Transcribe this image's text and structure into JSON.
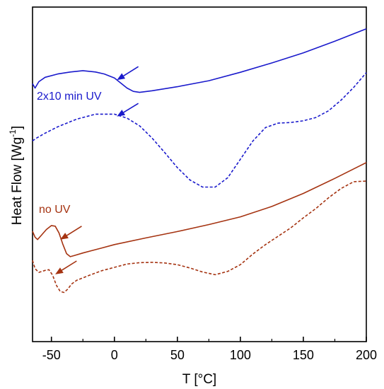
{
  "chart_data": {
    "type": "line",
    "title": "",
    "xlabel": "T [°C]",
    "ylabel": "Heat Flow [Wg",
    "ylabel_sup": "-1",
    "ylabel_close": "]",
    "xlim": [
      -65,
      200
    ],
    "ylim": [
      0,
      1
    ],
    "xticks": [
      -50,
      0,
      50,
      100,
      150,
      200
    ],
    "xtick_labels": [
      "-50",
      "0",
      "50",
      "100",
      "150",
      "200"
    ],
    "y_tick_labels_shown": false,
    "grid": false,
    "legend": "none",
    "annotations": [
      {
        "text": "2x10 min UV",
        "color": "#1a1acc"
      },
      {
        "text": "no UV",
        "color": "#a53311"
      }
    ],
    "arrows": [
      {
        "color": "#1a1acc",
        "tip": [
          2,
          0.782
        ],
        "tail": [
          19,
          0.822
        ]
      },
      {
        "color": "#1a1acc",
        "tip": [
          2,
          0.673
        ],
        "tail": [
          19,
          0.712
        ]
      },
      {
        "color": "#a53311",
        "tip": [
          -43,
          0.305
        ],
        "tail": [
          -26,
          0.345
        ]
      },
      {
        "color": "#a53311",
        "tip": [
          -47,
          0.201
        ],
        "tail": [
          -30,
          0.241
        ]
      }
    ],
    "series": [
      {
        "style": "solid",
        "color": "#1a1acc",
        "x": [
          -65,
          -63,
          -60,
          -55,
          -45,
          -35,
          -25,
          -15,
          -8,
          0,
          5,
          10,
          15,
          20,
          30,
          50,
          75,
          100,
          125,
          150,
          175,
          200
        ],
        "y": [
          0.771,
          0.758,
          0.777,
          0.79,
          0.8,
          0.806,
          0.81,
          0.806,
          0.8,
          0.788,
          0.773,
          0.758,
          0.748,
          0.745,
          0.75,
          0.762,
          0.78,
          0.805,
          0.833,
          0.863,
          0.898,
          0.935
        ]
      },
      {
        "style": "dashed",
        "color": "#1a1acc",
        "x": [
          -65,
          -62,
          -55,
          -45,
          -30,
          -15,
          0,
          10,
          20,
          30,
          40,
          50,
          60,
          70,
          80,
          90,
          100,
          110,
          120,
          130,
          140,
          150,
          160,
          170,
          180,
          190,
          200
        ],
        "y": [
          0.6,
          0.608,
          0.623,
          0.642,
          0.665,
          0.68,
          0.68,
          0.668,
          0.645,
          0.608,
          0.565,
          0.52,
          0.483,
          0.462,
          0.462,
          0.49,
          0.545,
          0.6,
          0.64,
          0.653,
          0.655,
          0.66,
          0.67,
          0.69,
          0.722,
          0.76,
          0.804
        ]
      },
      {
        "style": "solid",
        "color": "#a53311",
        "x": [
          -65,
          -63,
          -61,
          -58,
          -54,
          -50,
          -47,
          -44,
          -41,
          -38,
          -35,
          -32,
          -25,
          -10,
          0,
          25,
          50,
          75,
          100,
          125,
          150,
          175,
          200
        ],
        "y": [
          0.33,
          0.312,
          0.305,
          0.318,
          0.335,
          0.347,
          0.345,
          0.325,
          0.292,
          0.263,
          0.254,
          0.257,
          0.265,
          0.28,
          0.29,
          0.31,
          0.329,
          0.35,
          0.373,
          0.404,
          0.443,
          0.488,
          0.535
        ]
      },
      {
        "style": "dashed",
        "color": "#a53311",
        "x": [
          -65,
          -63,
          -60,
          -55,
          -52,
          -49,
          -46,
          -43,
          -40,
          -37,
          -34,
          -30,
          -20,
          -10,
          0,
          10,
          20,
          30,
          40,
          50,
          60,
          70,
          80,
          90,
          100,
          110,
          120,
          130,
          140,
          150,
          160,
          170,
          180,
          190,
          200
        ],
        "y": [
          0.243,
          0.218,
          0.207,
          0.213,
          0.215,
          0.198,
          0.168,
          0.15,
          0.147,
          0.157,
          0.172,
          0.183,
          0.198,
          0.212,
          0.222,
          0.232,
          0.236,
          0.237,
          0.235,
          0.23,
          0.22,
          0.208,
          0.2,
          0.21,
          0.23,
          0.262,
          0.29,
          0.315,
          0.34,
          0.37,
          0.398,
          0.43,
          0.458,
          0.478,
          0.48
        ]
      }
    ]
  }
}
